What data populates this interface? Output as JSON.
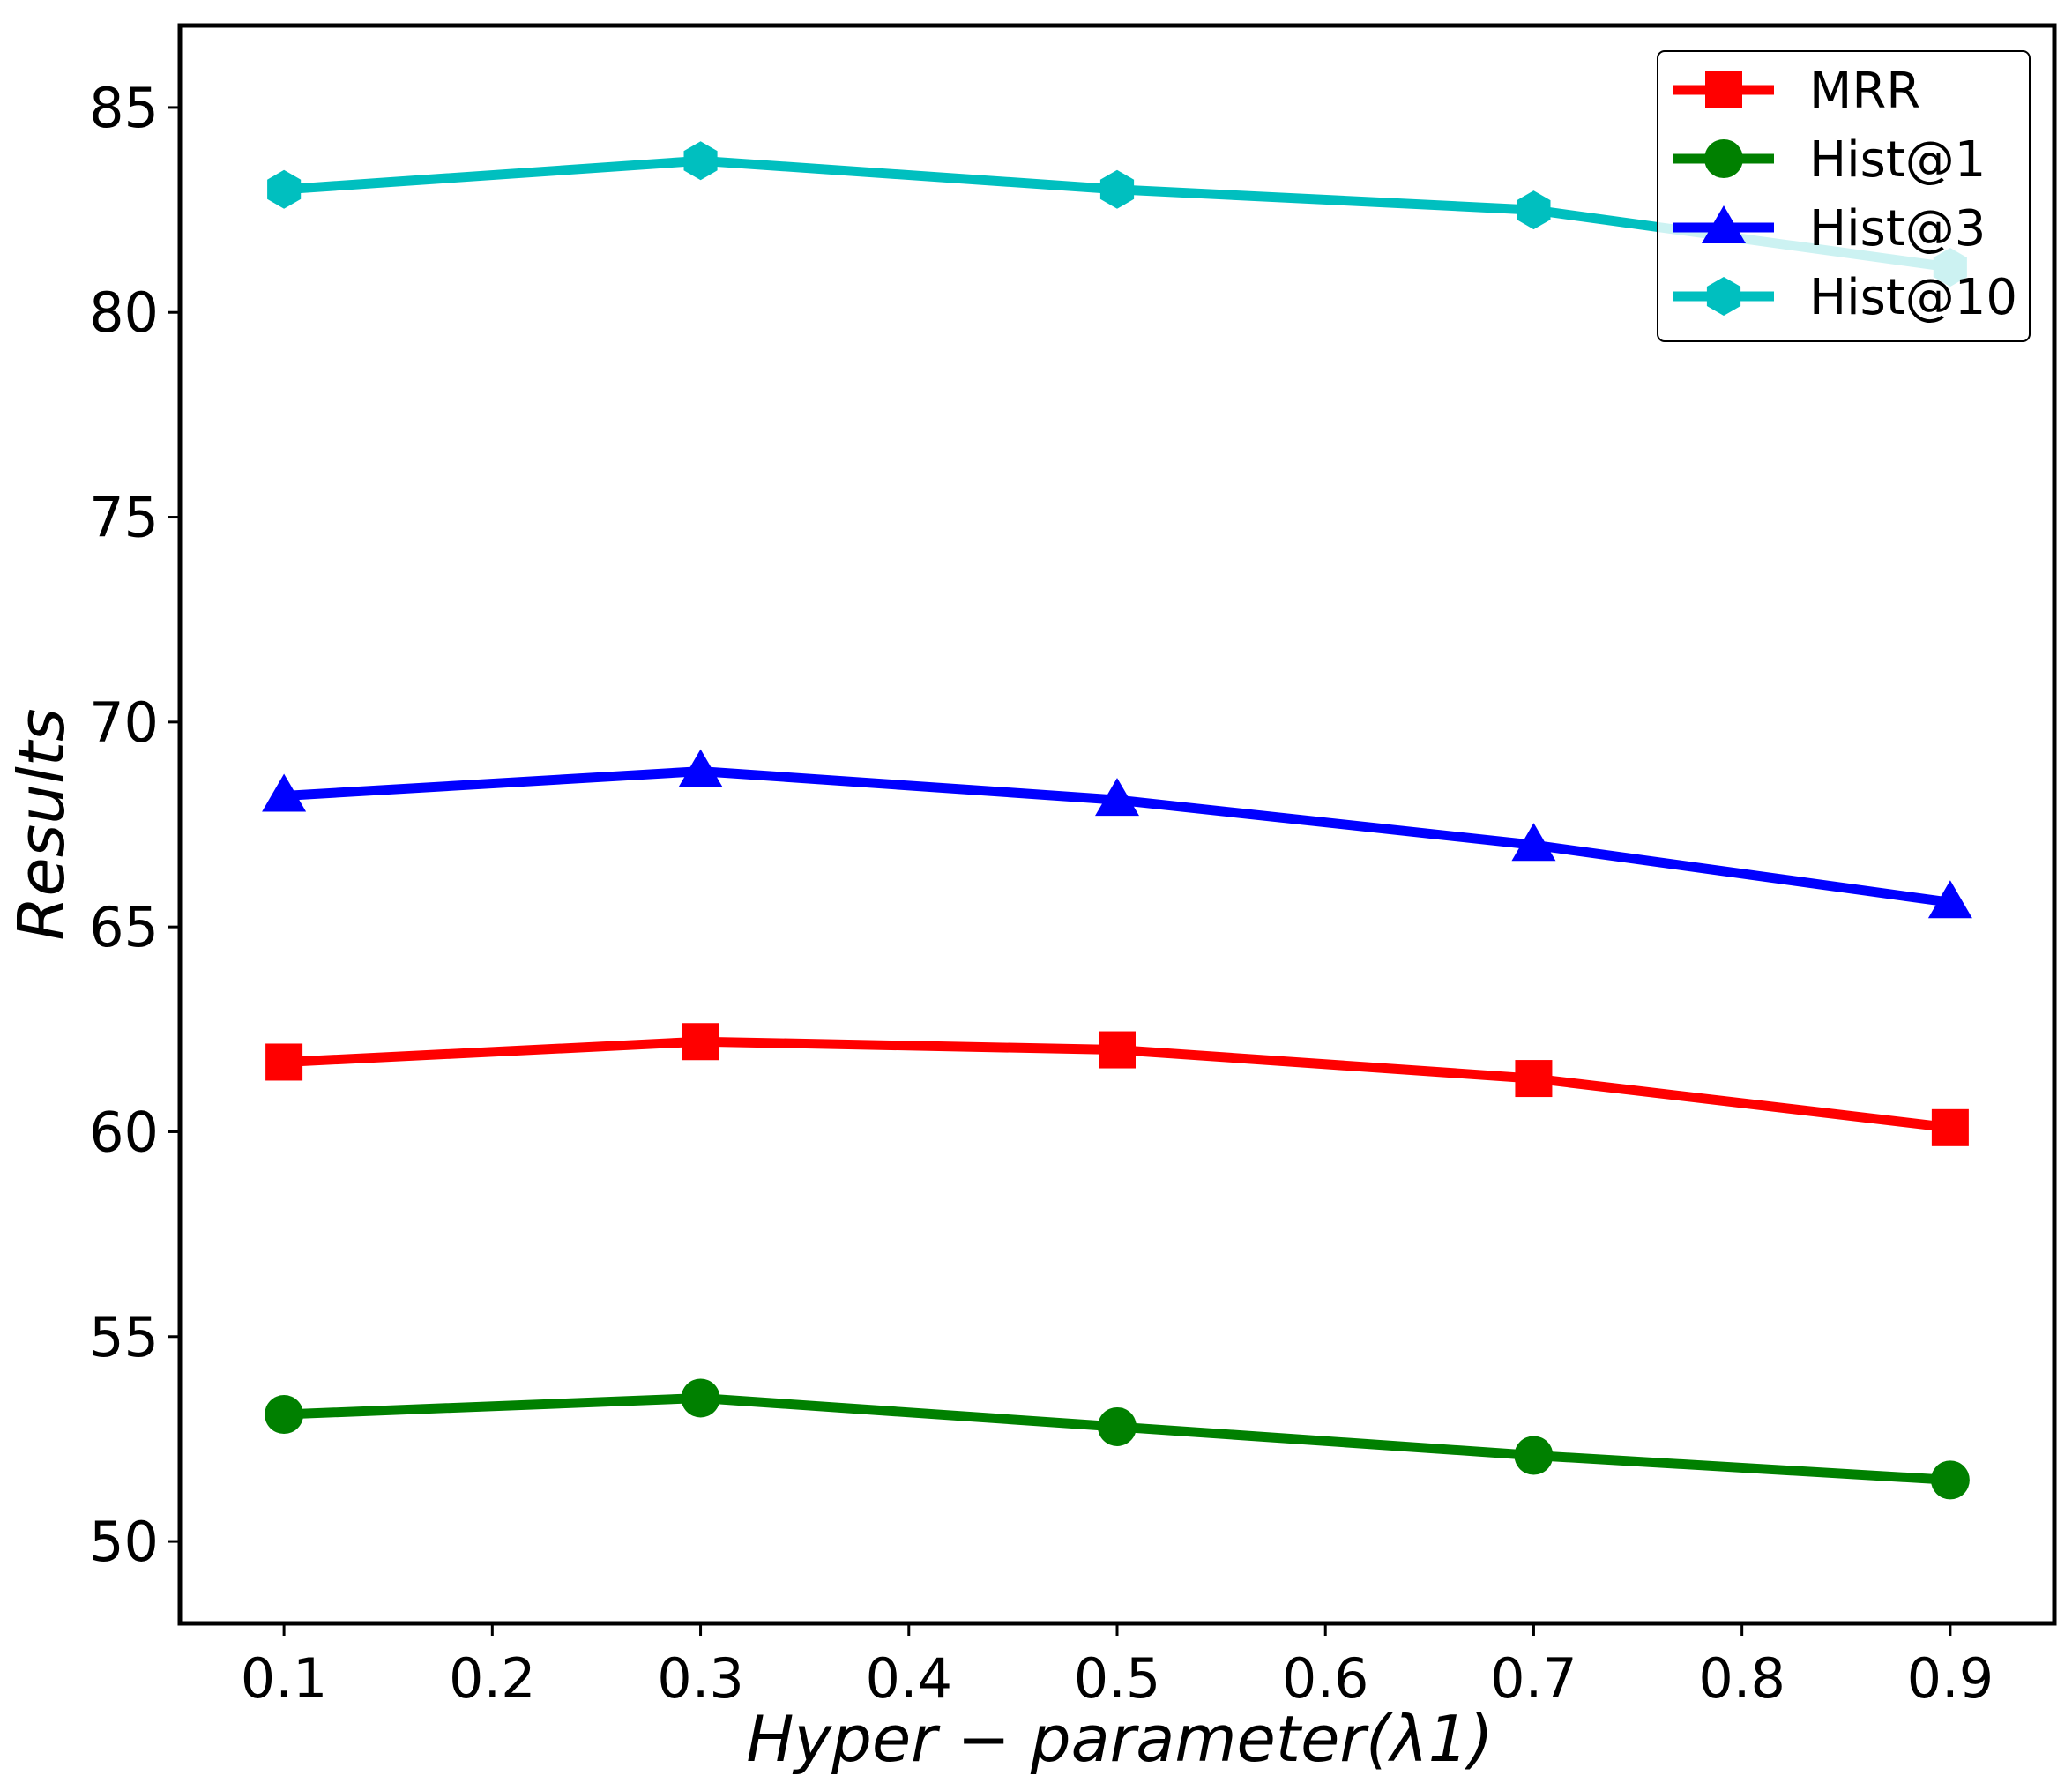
{
  "chart_data": {
    "type": "line",
    "title": "",
    "xlabel": "Hyper − parameter(λ1)",
    "ylabel": "Results",
    "x": [
      0.1,
      0.3,
      0.5,
      0.7,
      0.9
    ],
    "xlim": [
      0.05,
      0.95
    ],
    "ylim": [
      48,
      87
    ],
    "xticks": [
      0.1,
      0.2,
      0.3,
      0.4,
      0.5,
      0.6,
      0.7,
      0.8,
      0.9
    ],
    "xtick_labels": [
      "0.1",
      "0.2",
      "0.3",
      "0.4",
      "0.5",
      "0.6",
      "0.7",
      "0.8",
      "0.9"
    ],
    "yticks": [
      50,
      55,
      60,
      65,
      70,
      75,
      80,
      85
    ],
    "ytick_labels": [
      "50",
      "55",
      "60",
      "65",
      "70",
      "75",
      "80",
      "85"
    ],
    "grid": false,
    "legend_position": "top-right",
    "series": [
      {
        "name": "MRR",
        "color": "#ff0000",
        "marker": "square",
        "values": [
          61.7,
          62.2,
          62.0,
          61.3,
          60.1
        ]
      },
      {
        "name": "Hist@1",
        "color": "#008000",
        "marker": "circle",
        "values": [
          53.1,
          53.5,
          52.8,
          52.1,
          51.5
        ]
      },
      {
        "name": "Hist@3",
        "color": "#0000ff",
        "marker": "triangle",
        "values": [
          68.2,
          68.8,
          68.1,
          67.0,
          65.6
        ]
      },
      {
        "name": "Hist@10",
        "color": "#00bfbf",
        "marker": "hexagon",
        "values": [
          83.0,
          83.7,
          83.0,
          82.5,
          81.1
        ]
      }
    ]
  }
}
